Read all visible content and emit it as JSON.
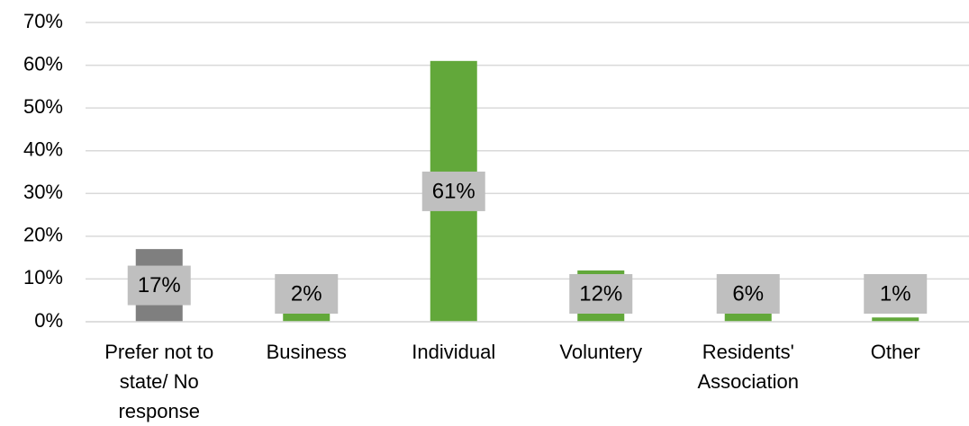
{
  "chart_data": {
    "type": "bar",
    "categories": [
      "Prefer not to state/ No response",
      "Business",
      "Individual",
      "Voluntery",
      "Residents' Association",
      "Other"
    ],
    "values": [
      17,
      2,
      61,
      12,
      6,
      1
    ],
    "value_labels": [
      "17%",
      "2%",
      "61%",
      "12%",
      "6%",
      "1%"
    ],
    "colors": [
      "#7f7f7f",
      "#62a83a",
      "#62a83a",
      "#62a83a",
      "#62a83a",
      "#62a83a"
    ],
    "ylim": [
      0,
      70
    ],
    "yticks": [
      {
        "value": 0,
        "label": "0%"
      },
      {
        "value": 10,
        "label": "10%"
      },
      {
        "value": 20,
        "label": "20%"
      },
      {
        "value": 30,
        "label": "30%"
      },
      {
        "value": 40,
        "label": "40%"
      },
      {
        "value": 50,
        "label": "50%"
      },
      {
        "value": 60,
        "label": "60%"
      },
      {
        "value": 70,
        "label": "70%"
      }
    ],
    "grid": true
  }
}
